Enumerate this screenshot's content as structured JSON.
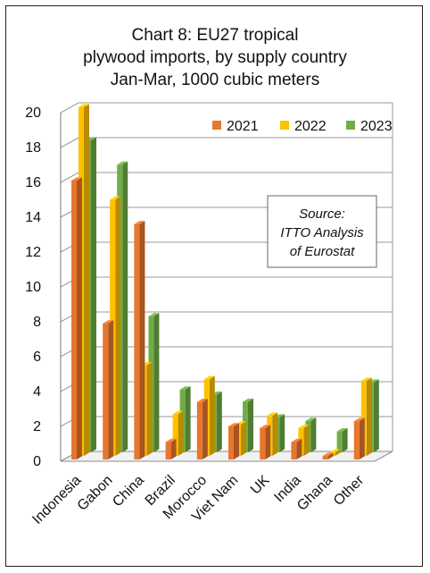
{
  "chart_data": {
    "type": "bar",
    "title_lines": [
      "Chart 8: EU27 tropical",
      "plywood imports, by supply country",
      "Jan-Mar, 1000 cubic meters"
    ],
    "categories": [
      "Indonesia",
      "Gabon",
      "China",
      "Brazil",
      "Morocco",
      "Viet Nam",
      "UK",
      "India",
      "Ghana",
      "Other"
    ],
    "series": [
      {
        "name": "2021",
        "color": "#E8762C",
        "values": [
          16.0,
          7.8,
          13.5,
          1.0,
          3.3,
          1.9,
          1.8,
          1.0,
          0.2,
          2.2
        ]
      },
      {
        "name": "2022",
        "color": "#FFC000",
        "values": [
          20.0,
          14.7,
          5.2,
          2.4,
          4.4,
          1.8,
          2.3,
          1.6,
          0.2,
          4.3
        ]
      },
      {
        "name": "2023",
        "color": "#70AD47",
        "values": [
          17.9,
          16.5,
          7.8,
          3.6,
          3.3,
          2.9,
          2.0,
          1.8,
          1.2,
          4.0
        ]
      }
    ],
    "yticks": [
      "0",
      "2",
      "4",
      "6",
      "8",
      "10",
      "12",
      "14",
      "16",
      "18",
      "20"
    ],
    "ylim": [
      0,
      20
    ],
    "grid": true,
    "legend_position": "top-right",
    "annotation": [
      "Source:",
      "ITTO Analysis",
      "of Eurostat"
    ]
  }
}
